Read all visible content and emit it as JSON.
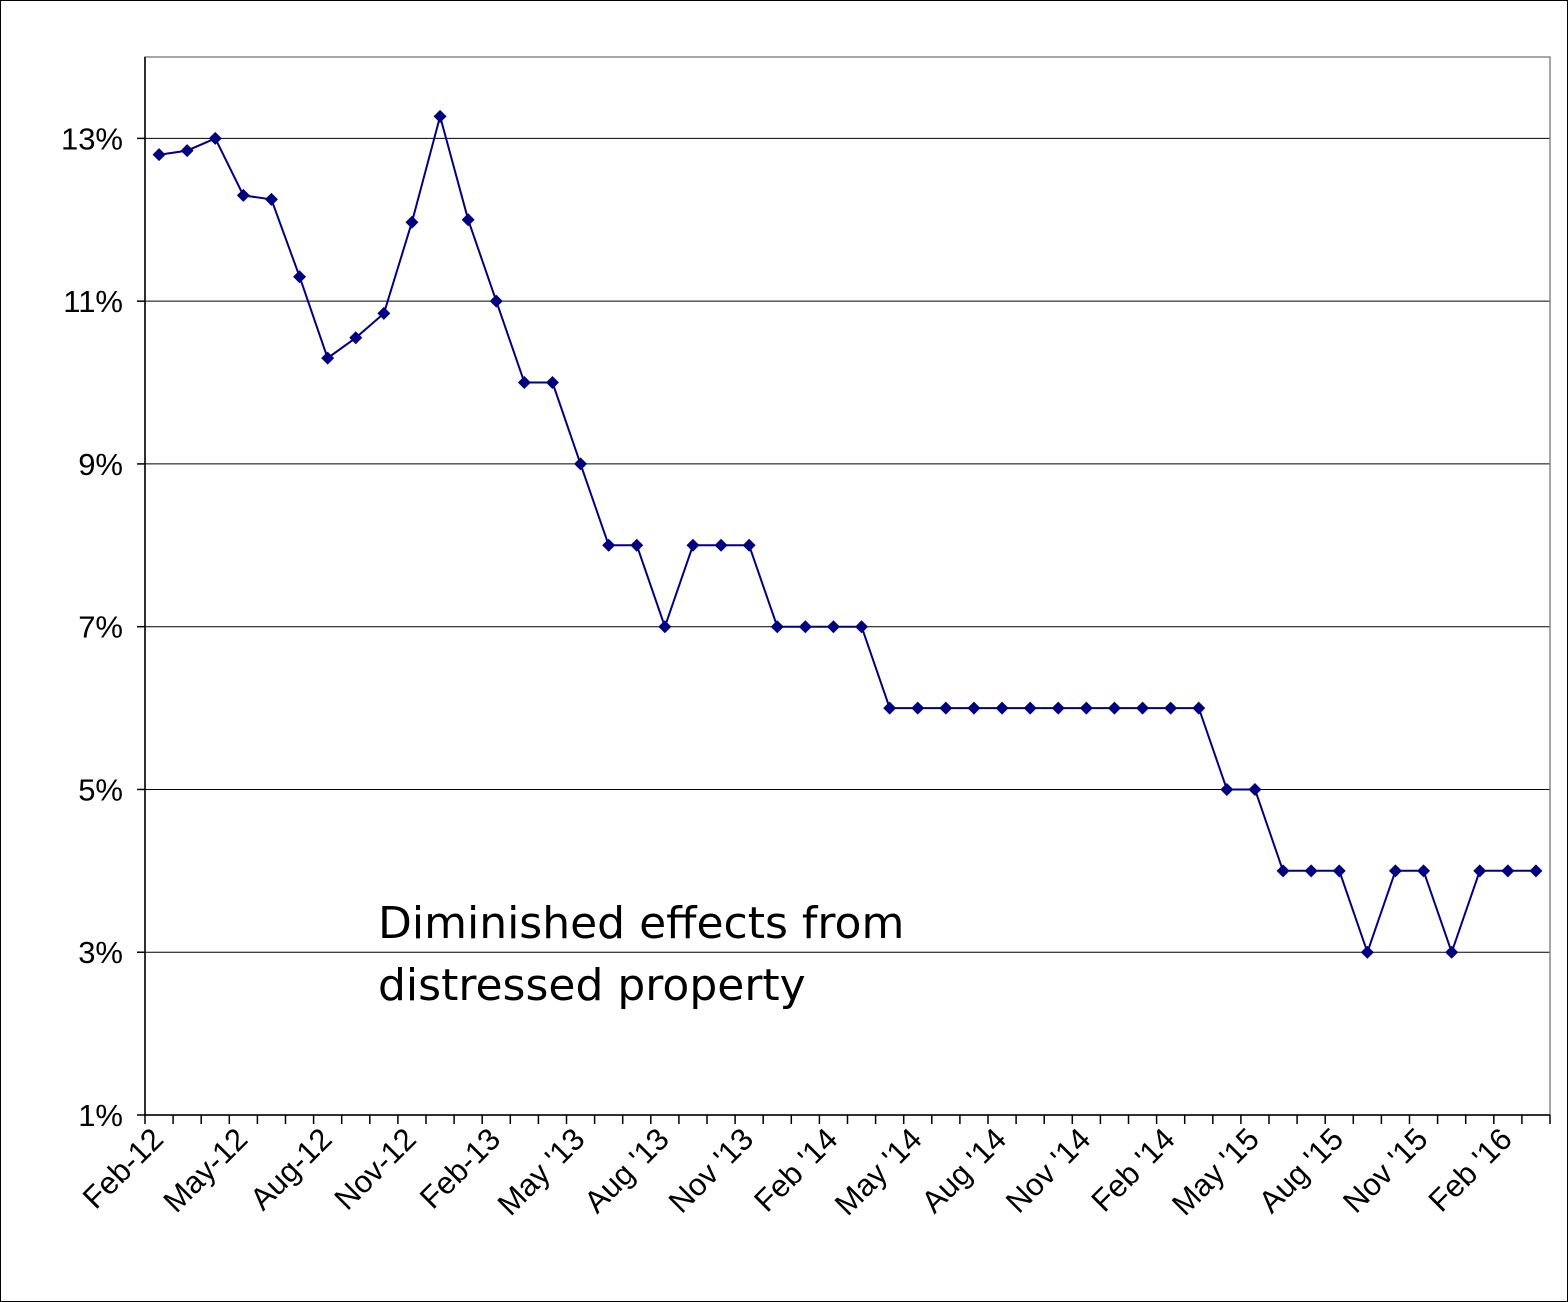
{
  "chart_data": {
    "type": "line",
    "title": "",
    "xlabel": "",
    "ylabel": "",
    "ylim": [
      1,
      14
    ],
    "y_ticks": [
      1,
      3,
      5,
      7,
      9,
      11,
      13
    ],
    "y_tick_labels": [
      "1%",
      "3%",
      "5%",
      "7%",
      "9%",
      "11%",
      "13%"
    ],
    "x_tick_labels": [
      "Feb-12",
      "May-12",
      "Aug-12",
      "Nov-12",
      "Feb-13",
      "May '13",
      "Aug '13",
      "Nov '13",
      "Feb '14",
      "May '14",
      "Aug '14",
      "Nov '14",
      "Feb '14",
      "May '15",
      "Aug '15",
      "Nov '15",
      "Feb '16"
    ],
    "grid": true,
    "line_color": "#000080",
    "annotation": [
      "Diminished effects from",
      "distressed property"
    ],
    "series": [
      {
        "values": [
          12.8,
          12.85,
          13.0,
          12.3,
          12.25,
          11.3,
          10.3,
          10.55,
          10.85,
          11.97,
          13.27,
          12.0,
          11.0,
          10.0,
          10.0,
          9.0,
          8.0,
          8.0,
          7.0,
          8.0,
          8.0,
          8.0,
          7.0,
          7.0,
          7.0,
          7.0,
          6.0,
          6.0,
          6.0,
          6.0,
          6.0,
          6.0,
          6.0,
          6.0,
          6.0,
          6.0,
          6.0,
          6.0,
          5.0,
          5.0,
          4.0,
          4.0,
          4.0,
          3.0,
          4.0,
          4.0,
          3.0,
          4.0,
          4.0,
          4.0
        ]
      }
    ]
  }
}
